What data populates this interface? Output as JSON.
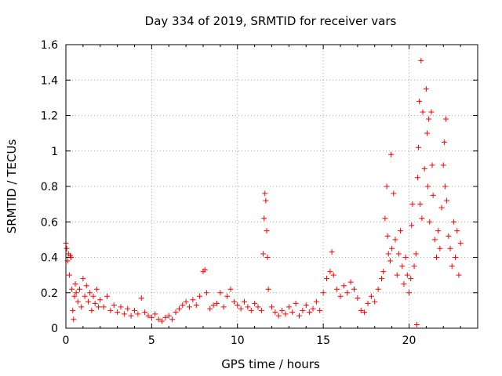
{
  "chart_data": {
    "type": "scatter",
    "title": "Day 334 of 2019, SRMTID for receiver vars",
    "xlabel": "GPS time / hours",
    "ylabel": "SRMTID / TECUs",
    "xlim": [
      0,
      24
    ],
    "ylim": [
      0,
      1.6
    ],
    "grid": true,
    "x_ticks": [
      0,
      5,
      10,
      15,
      20
    ],
    "x_tick_labels": [
      "0",
      "5",
      "10",
      "15",
      "20"
    ],
    "y_ticks": [
      0,
      0.2,
      0.4,
      0.6,
      0.8,
      1.0,
      1.2,
      1.4,
      1.6
    ],
    "y_tick_labels": [
      "0",
      "0.2",
      "0.4",
      "0.6",
      "0.8",
      "1",
      "1.2",
      "1.4",
      "1.6"
    ],
    "series": [
      {
        "name": "SRMTID",
        "marker": "+",
        "color": "#ff0000",
        "points": [
          [
            0.0,
            0.48
          ],
          [
            0.05,
            0.45
          ],
          [
            0.1,
            0.38
          ],
          [
            0.15,
            0.42
          ],
          [
            0.2,
            0.3
          ],
          [
            0.25,
            0.41
          ],
          [
            0.3,
            0.4
          ],
          [
            0.35,
            0.22
          ],
          [
            0.4,
            0.1
          ],
          [
            0.45,
            0.05
          ],
          [
            0.5,
            0.18
          ],
          [
            0.55,
            0.25
          ],
          [
            0.6,
            0.2
          ],
          [
            0.7,
            0.15
          ],
          [
            0.8,
            0.22
          ],
          [
            0.9,
            0.12
          ],
          [
            1.0,
            0.28
          ],
          [
            1.1,
            0.18
          ],
          [
            1.2,
            0.24
          ],
          [
            1.3,
            0.15
          ],
          [
            1.4,
            0.2
          ],
          [
            1.5,
            0.1
          ],
          [
            1.6,
            0.18
          ],
          [
            1.7,
            0.14
          ],
          [
            1.8,
            0.22
          ],
          [
            1.9,
            0.12
          ],
          [
            2.0,
            0.16
          ],
          [
            2.2,
            0.12
          ],
          [
            2.4,
            0.18
          ],
          [
            2.6,
            0.1
          ],
          [
            2.8,
            0.13
          ],
          [
            3.0,
            0.09
          ],
          [
            3.2,
            0.12
          ],
          [
            3.4,
            0.08
          ],
          [
            3.6,
            0.11
          ],
          [
            3.8,
            0.07
          ],
          [
            4.0,
            0.1
          ],
          [
            4.2,
            0.08
          ],
          [
            4.4,
            0.17
          ],
          [
            4.6,
            0.09
          ],
          [
            4.8,
            0.07
          ],
          [
            5.0,
            0.06
          ],
          [
            5.2,
            0.08
          ],
          [
            5.4,
            0.05
          ],
          [
            5.6,
            0.04
          ],
          [
            5.8,
            0.06
          ],
          [
            6.0,
            0.07
          ],
          [
            6.2,
            0.05
          ],
          [
            6.4,
            0.09
          ],
          [
            6.6,
            0.11
          ],
          [
            6.8,
            0.13
          ],
          [
            7.0,
            0.15
          ],
          [
            7.2,
            0.12
          ],
          [
            7.4,
            0.16
          ],
          [
            7.6,
            0.13
          ],
          [
            7.8,
            0.18
          ],
          [
            8.0,
            0.32
          ],
          [
            8.1,
            0.33
          ],
          [
            8.2,
            0.2
          ],
          [
            8.4,
            0.11
          ],
          [
            8.6,
            0.13
          ],
          [
            8.8,
            0.14
          ],
          [
            9.0,
            0.2
          ],
          [
            9.2,
            0.12
          ],
          [
            9.4,
            0.18
          ],
          [
            9.6,
            0.22
          ],
          [
            9.8,
            0.15
          ],
          [
            10.0,
            0.13
          ],
          [
            10.2,
            0.11
          ],
          [
            10.4,
            0.15
          ],
          [
            10.6,
            0.12
          ],
          [
            10.8,
            0.1
          ],
          [
            11.0,
            0.14
          ],
          [
            11.2,
            0.12
          ],
          [
            11.4,
            0.1
          ],
          [
            11.5,
            0.42
          ],
          [
            11.55,
            0.62
          ],
          [
            11.6,
            0.76
          ],
          [
            11.65,
            0.72
          ],
          [
            11.7,
            0.55
          ],
          [
            11.75,
            0.4
          ],
          [
            11.8,
            0.22
          ],
          [
            12.0,
            0.12
          ],
          [
            12.2,
            0.09
          ],
          [
            12.4,
            0.07
          ],
          [
            12.6,
            0.1
          ],
          [
            12.8,
            0.08
          ],
          [
            13.0,
            0.12
          ],
          [
            13.2,
            0.09
          ],
          [
            13.4,
            0.14
          ],
          [
            13.6,
            0.07
          ],
          [
            13.8,
            0.1
          ],
          [
            14.0,
            0.13
          ],
          [
            14.2,
            0.09
          ],
          [
            14.4,
            0.11
          ],
          [
            14.6,
            0.15
          ],
          [
            14.8,
            0.1
          ],
          [
            15.0,
            0.2
          ],
          [
            15.2,
            0.28
          ],
          [
            15.4,
            0.32
          ],
          [
            15.5,
            0.43
          ],
          [
            15.6,
            0.3
          ],
          [
            15.8,
            0.22
          ],
          [
            16.0,
            0.18
          ],
          [
            16.2,
            0.24
          ],
          [
            16.4,
            0.2
          ],
          [
            16.6,
            0.26
          ],
          [
            16.8,
            0.22
          ],
          [
            17.0,
            0.17
          ],
          [
            17.2,
            0.1
          ],
          [
            17.4,
            0.09
          ],
          [
            17.6,
            0.14
          ],
          [
            17.8,
            0.18
          ],
          [
            18.0,
            0.15
          ],
          [
            18.2,
            0.22
          ],
          [
            18.4,
            0.28
          ],
          [
            18.5,
            0.32
          ],
          [
            18.6,
            0.62
          ],
          [
            18.7,
            0.8
          ],
          [
            18.75,
            0.52
          ],
          [
            18.8,
            0.42
          ],
          [
            18.9,
            0.38
          ],
          [
            18.95,
            0.98
          ],
          [
            19.0,
            0.45
          ],
          [
            19.1,
            0.76
          ],
          [
            19.2,
            0.5
          ],
          [
            19.3,
            0.3
          ],
          [
            19.4,
            0.42
          ],
          [
            19.5,
            0.55
          ],
          [
            19.6,
            0.35
          ],
          [
            19.7,
            0.25
          ],
          [
            19.8,
            0.4
          ],
          [
            19.9,
            0.3
          ],
          [
            20.0,
            0.2
          ],
          [
            20.1,
            0.28
          ],
          [
            20.15,
            0.58
          ],
          [
            20.2,
            0.7
          ],
          [
            20.3,
            0.35
          ],
          [
            20.4,
            0.42
          ],
          [
            20.45,
            0.02
          ],
          [
            20.5,
            0.85
          ],
          [
            20.55,
            1.02
          ],
          [
            20.6,
            1.28
          ],
          [
            20.65,
            0.7
          ],
          [
            20.7,
            1.51
          ],
          [
            20.75,
            0.62
          ],
          [
            20.8,
            1.22
          ],
          [
            20.9,
            0.9
          ],
          [
            21.0,
            1.35
          ],
          [
            21.05,
            1.1
          ],
          [
            21.1,
            0.8
          ],
          [
            21.15,
            1.18
          ],
          [
            21.2,
            0.6
          ],
          [
            21.3,
            1.22
          ],
          [
            21.35,
            0.92
          ],
          [
            21.4,
            0.75
          ],
          [
            21.5,
            0.5
          ],
          [
            21.6,
            0.4
          ],
          [
            21.7,
            0.55
          ],
          [
            21.8,
            0.45
          ],
          [
            21.9,
            0.68
          ],
          [
            22.0,
            0.92
          ],
          [
            22.05,
            1.05
          ],
          [
            22.1,
            0.8
          ],
          [
            22.15,
            1.18
          ],
          [
            22.2,
            0.72
          ],
          [
            22.3,
            0.52
          ],
          [
            22.4,
            0.45
          ],
          [
            22.5,
            0.35
          ],
          [
            22.6,
            0.6
          ],
          [
            22.7,
            0.4
          ],
          [
            22.8,
            0.55
          ],
          [
            22.9,
            0.3
          ],
          [
            23.0,
            0.48
          ]
        ]
      }
    ]
  }
}
